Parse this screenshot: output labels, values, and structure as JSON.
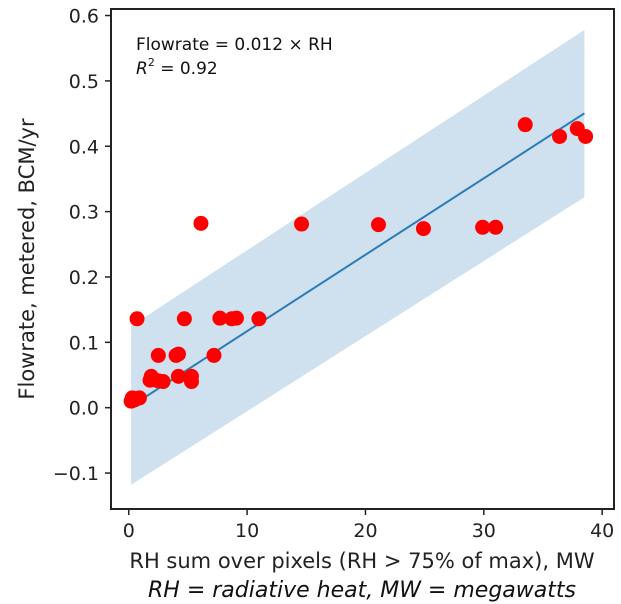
{
  "chart_data": {
    "type": "scatter",
    "xlabel": "RH sum over pixels (RH > 75% of max), MW",
    "ylabel": "Flowrate, metered, BCM/yr",
    "note": "RH = radiative heat, MW = megawatts",
    "annotation_line1": "Flowrate = 0.012 ×  RH",
    "annotation_r2_symbol": "R",
    "annotation_r2_exp": "2",
    "annotation_r2_value": " = 0.92",
    "xlim": [
      -1.5,
      41
    ],
    "ylim": [
      -0.155,
      0.61
    ],
    "xticks": [
      0,
      10,
      20,
      30,
      40
    ],
    "yticks": [
      -0.1,
      0.0,
      0.1,
      0.2,
      0.3,
      0.4,
      0.5,
      0.6
    ],
    "xtick_labels": [
      "0",
      "10",
      "20",
      "30",
      "40"
    ],
    "ytick_labels": [
      "−0.1",
      "0.0",
      "0.1",
      "0.2",
      "0.3",
      "0.4",
      "0.5",
      "0.6"
    ],
    "grid": false,
    "fit": {
      "slope": 0.0117,
      "x_start": 0.2,
      "x_end": 38.5,
      "color": "#2c7bb6"
    },
    "confidence_band": {
      "upper": [
        [
          0.2,
          0.125
        ],
        [
          38.5,
          0.578
        ]
      ],
      "lower": [
        [
          0.2,
          -0.118
        ],
        [
          38.5,
          0.322
        ]
      ],
      "color": "#cfe1ef"
    },
    "marker_color": "#ff0000",
    "points": [
      {
        "x": 0.2,
        "y": 0.01
      },
      {
        "x": 0.3,
        "y": 0.015
      },
      {
        "x": 0.5,
        "y": 0.012
      },
      {
        "x": 0.9,
        "y": 0.015
      },
      {
        "x": 0.7,
        "y": 0.136
      },
      {
        "x": 1.8,
        "y": 0.042
      },
      {
        "x": 1.9,
        "y": 0.048
      },
      {
        "x": 2.5,
        "y": 0.08
      },
      {
        "x": 2.5,
        "y": 0.041
      },
      {
        "x": 2.9,
        "y": 0.04
      },
      {
        "x": 4.0,
        "y": 0.08
      },
      {
        "x": 4.2,
        "y": 0.082
      },
      {
        "x": 4.2,
        "y": 0.048
      },
      {
        "x": 4.7,
        "y": 0.136
      },
      {
        "x": 5.3,
        "y": 0.048
      },
      {
        "x": 5.3,
        "y": 0.04
      },
      {
        "x": 6.1,
        "y": 0.282
      },
      {
        "x": 7.2,
        "y": 0.08
      },
      {
        "x": 7.7,
        "y": 0.137
      },
      {
        "x": 8.7,
        "y": 0.136
      },
      {
        "x": 9.1,
        "y": 0.137
      },
      {
        "x": 11.0,
        "y": 0.136
      },
      {
        "x": 14.6,
        "y": 0.281
      },
      {
        "x": 21.1,
        "y": 0.28
      },
      {
        "x": 24.9,
        "y": 0.274
      },
      {
        "x": 29.9,
        "y": 0.276
      },
      {
        "x": 31.0,
        "y": 0.276
      },
      {
        "x": 33.5,
        "y": 0.433
      },
      {
        "x": 36.4,
        "y": 0.415
      },
      {
        "x": 37.9,
        "y": 0.427
      },
      {
        "x": 38.6,
        "y": 0.415
      }
    ]
  }
}
